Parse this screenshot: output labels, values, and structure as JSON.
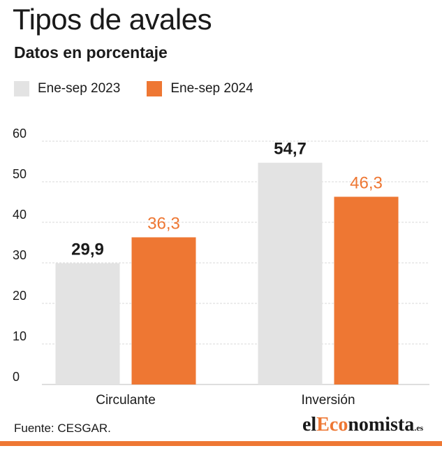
{
  "header": {
    "title": "Tipos de avales",
    "subtitle": "Datos en porcentaje"
  },
  "footer": {
    "source": "Fuente: CESGAR.",
    "logo": {
      "prefix": "el",
      "accent": "Eco",
      "rest": "nomista",
      "tld": ".es"
    }
  },
  "colors": {
    "series_2023": "#e3e3e3",
    "series_2024": "#ee7733",
    "label_2023": "#1a1a1a",
    "label_2024": "#ee7733",
    "grid": "#d9d9d9",
    "accent": "#ee7733"
  },
  "chart_data": {
    "type": "bar",
    "categories": [
      "Circulante",
      "Inversión"
    ],
    "series": [
      {
        "name": "Ene-sep 2023",
        "values": [
          29.9,
          54.7
        ],
        "labels": [
          "29,9",
          "54,7"
        ]
      },
      {
        "name": "Ene-sep 2024",
        "values": [
          36.3,
          46.3
        ],
        "labels": [
          "36,3",
          "46,3"
        ]
      }
    ],
    "yticks": [
      "0",
      "10",
      "20",
      "30",
      "40",
      "50",
      "60"
    ],
    "ylim": [
      0,
      60
    ],
    "grid": true,
    "legend": "top-left"
  }
}
